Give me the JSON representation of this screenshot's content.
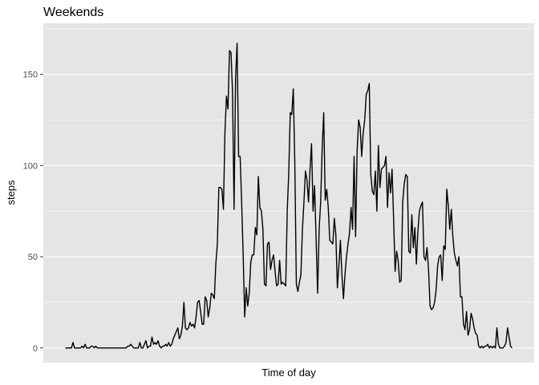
{
  "chart_data": {
    "type": "line",
    "title": "Weekends",
    "xlabel": "Time of day",
    "ylabel": "steps",
    "ylim": [
      -8,
      178
    ],
    "y_ticks": [
      0,
      50,
      100,
      150
    ],
    "x_ticks": [],
    "grid": true,
    "legend": "none",
    "colors": {
      "panel": "#e5e5e5",
      "grid_major": "#ffffff",
      "line": "#000000",
      "tick": "#333333"
    },
    "series": [
      {
        "values": [
          0,
          0,
          0,
          0,
          0,
          3,
          0,
          0,
          0,
          0,
          0,
          1,
          0,
          2,
          0,
          0,
          0,
          1,
          1,
          0,
          1,
          0,
          0,
          0,
          0,
          0,
          0,
          0,
          0,
          0,
          0,
          0,
          0,
          0,
          0,
          0,
          0,
          0,
          0,
          0,
          0,
          1,
          1,
          2,
          1,
          0,
          0,
          0,
          0,
          3,
          0,
          0,
          2,
          4,
          0,
          1,
          1,
          6,
          2,
          3,
          2,
          4,
          1,
          0,
          1,
          1,
          2,
          1,
          3,
          1,
          2,
          5,
          7,
          9,
          11,
          5,
          7,
          12,
          25,
          11,
          10,
          11,
          14,
          12,
          13,
          11,
          17,
          25,
          26,
          20,
          13,
          13,
          28,
          26,
          17,
          22,
          30,
          29,
          27,
          46,
          57,
          88,
          88,
          87,
          76,
          118,
          138,
          131,
          163,
          162,
          140,
          76,
          148,
          167,
          105,
          105,
          80,
          51,
          17,
          33,
          23,
          30,
          47,
          51,
          51,
          66,
          62,
          94,
          77,
          75,
          65,
          35,
          34,
          57,
          58,
          43,
          48,
          51,
          42,
          34,
          35,
          48,
          35,
          36,
          35,
          34,
          75,
          96,
          129,
          128,
          142,
          101,
          35,
          31,
          36,
          40,
          65,
          80,
          97,
          92,
          80,
          98,
          112,
          75,
          89,
          60,
          30,
          65,
          80,
          109,
          129,
          81,
          87,
          77,
          59,
          58,
          57,
          71,
          62,
          33,
          45,
          59,
          40,
          27,
          40,
          50,
          57,
          63,
          77,
          65,
          105,
          61,
          108,
          125,
          121,
          105,
          118,
          125,
          139,
          141,
          145,
          95,
          86,
          84,
          97,
          75,
          111,
          88,
          98,
          99,
          100,
          105,
          77,
          96,
          85,
          98,
          71,
          42,
          53,
          48,
          36,
          37,
          80,
          90,
          95,
          94,
          53,
          52,
          73,
          55,
          66,
          46,
          64,
          75,
          78,
          80,
          50,
          48,
          55,
          43,
          23,
          21,
          22,
          25,
          32,
          45,
          50,
          51,
          37,
          56,
          54,
          87,
          78,
          65,
          76,
          61,
          52,
          48,
          45,
          50,
          28,
          28,
          13,
          10,
          20,
          7,
          10,
          19,
          16,
          11,
          8,
          7,
          1,
          0,
          1,
          0,
          1,
          1,
          2,
          0,
          1,
          0,
          1,
          0,
          11,
          2,
          0,
          0,
          0,
          1,
          3,
          11,
          6,
          1,
          0
        ]
      }
    ]
  }
}
